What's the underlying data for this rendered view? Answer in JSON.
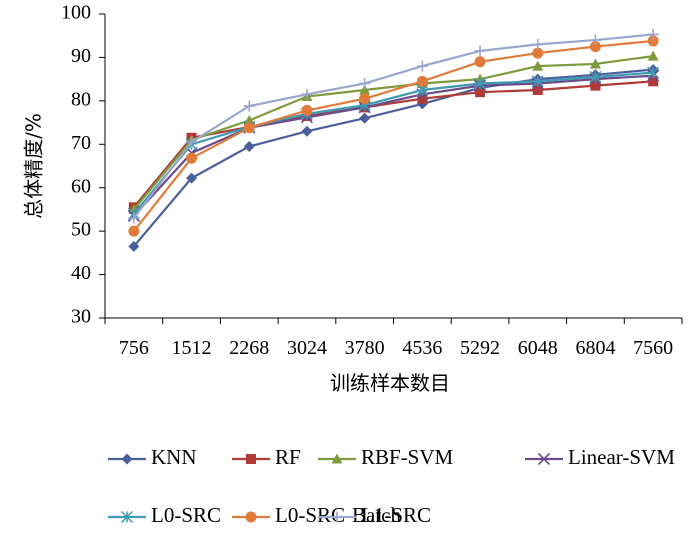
{
  "chart_data": {
    "type": "line",
    "title": "",
    "xlabel": "训练样本数目",
    "ylabel": "总体精度/%",
    "ylim": [
      30,
      100
    ],
    "yticks": [
      30,
      40,
      50,
      60,
      70,
      80,
      90,
      100
    ],
    "grid": false,
    "legend_position": "bottom",
    "categories": [
      "756",
      "1512",
      "2268",
      "3024",
      "3780",
      "4536",
      "5292",
      "6048",
      "6804",
      "7560"
    ],
    "series": [
      {
        "name": "KNN",
        "color": "#4a5f9b",
        "marker": "diamond",
        "values": [
          46.5,
          62.2,
          69.5,
          73.0,
          76.0,
          79.3,
          83.0,
          85.0,
          86.0,
          87.2
        ]
      },
      {
        "name": "RF",
        "color": "#b03a36",
        "marker": "square",
        "values": [
          55.5,
          71.5,
          74.0,
          76.5,
          78.5,
          80.5,
          82.0,
          82.5,
          83.5,
          84.5
        ]
      },
      {
        "name": "RBF-SVM",
        "color": "#7f9a3d",
        "marker": "triangle",
        "values": [
          55.0,
          71.0,
          75.5,
          81.0,
          82.5,
          84.0,
          85.0,
          88.0,
          88.5,
          90.3
        ]
      },
      {
        "name": "Linear-SVM",
        "color": "#6a4c8c",
        "marker": "x",
        "values": [
          53.5,
          68.0,
          73.8,
          76.2,
          78.5,
          81.5,
          83.5,
          84.0,
          85.0,
          85.8
        ]
      },
      {
        "name": "L0-SRC",
        "color": "#3f9bb3",
        "marker": "asterisk",
        "values": [
          54.0,
          70.0,
          74.0,
          77.0,
          79.0,
          82.5,
          84.0,
          84.5,
          85.5,
          86.5
        ]
      },
      {
        "name": "L0-SRC-Batch",
        "color": "#e07b39",
        "marker": "circle",
        "values": [
          50.0,
          66.8,
          73.8,
          77.8,
          80.5,
          84.5,
          89.0,
          91.0,
          92.5,
          93.8
        ]
      },
      {
        "name": "L1-SRC",
        "color": "#9ba6cf",
        "marker": "plus",
        "values": [
          53.0,
          70.5,
          78.8,
          81.5,
          84.0,
          88.0,
          91.5,
          93.0,
          94.0,
          95.3
        ]
      }
    ]
  }
}
